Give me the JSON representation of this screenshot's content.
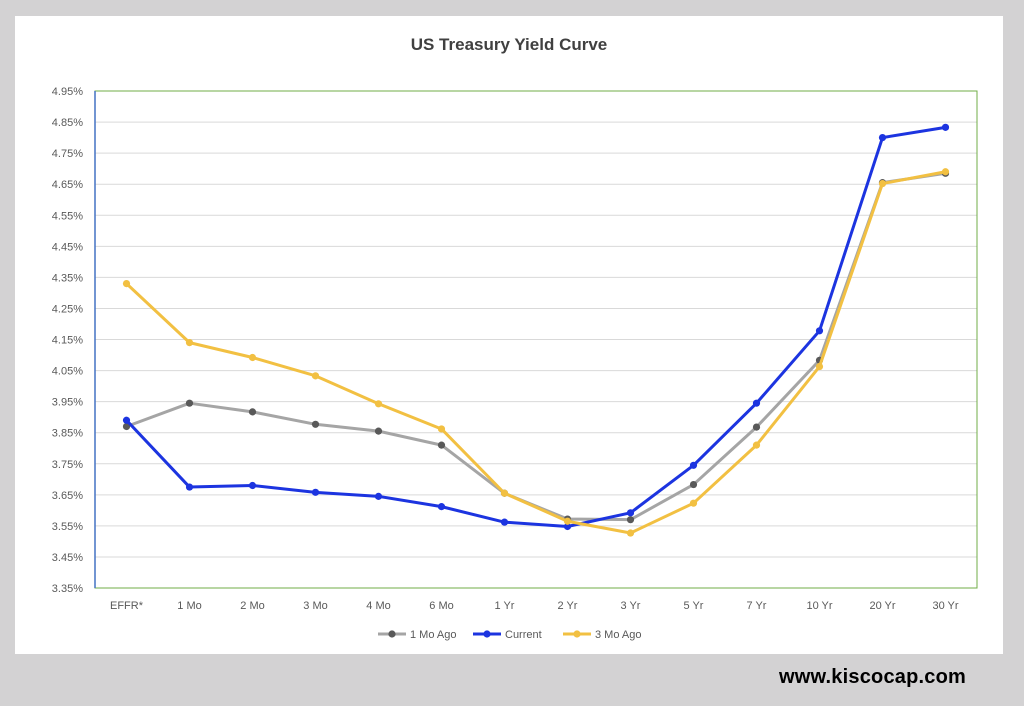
{
  "chart_data": {
    "type": "line",
    "title": "US Treasury Yield Curve",
    "xlabel": "",
    "ylabel": "",
    "categories": [
      "EFFR*",
      "1 Mo",
      "2 Mo",
      "3 Mo",
      "4 Mo",
      "6 Mo",
      "1 Yr",
      "2 Yr",
      "3 Yr",
      "5 Yr",
      "7 Yr",
      "10 Yr",
      "20 Yr",
      "30 Yr"
    ],
    "ylim": [
      3.35,
      4.95
    ],
    "yticks": [
      "3.35%",
      "3.45%",
      "3.55%",
      "3.65%",
      "3.75%",
      "3.85%",
      "3.95%",
      "4.05%",
      "4.15%",
      "4.25%",
      "4.35%",
      "4.45%",
      "4.55%",
      "4.65%",
      "4.75%",
      "4.85%",
      "4.95%"
    ],
    "legend_position": "bottom-center",
    "series": [
      {
        "name": "1 Mo Ago",
        "color": "#a5a5a5",
        "marker_color": "#595959",
        "values": [
          3.87,
          3.945,
          3.917,
          3.877,
          3.855,
          3.81,
          3.655,
          3.572,
          3.57,
          3.683,
          3.868,
          4.083,
          4.655,
          4.685
        ]
      },
      {
        "name": "Current",
        "color": "#1c34e0",
        "marker_color": "#1c34e0",
        "values": [
          3.89,
          3.675,
          3.68,
          3.658,
          3.645,
          3.612,
          3.562,
          3.548,
          3.592,
          3.745,
          3.945,
          4.178,
          4.8,
          4.833
        ]
      },
      {
        "name": "3 Mo Ago",
        "color": "#f2c042",
        "marker_color": "#f2c042",
        "values": [
          4.33,
          4.14,
          4.092,
          4.033,
          3.943,
          3.862,
          3.655,
          3.565,
          3.527,
          3.623,
          3.81,
          4.063,
          4.652,
          4.69
        ]
      }
    ]
  },
  "footer": {
    "website": "www.kiscocap.com"
  }
}
